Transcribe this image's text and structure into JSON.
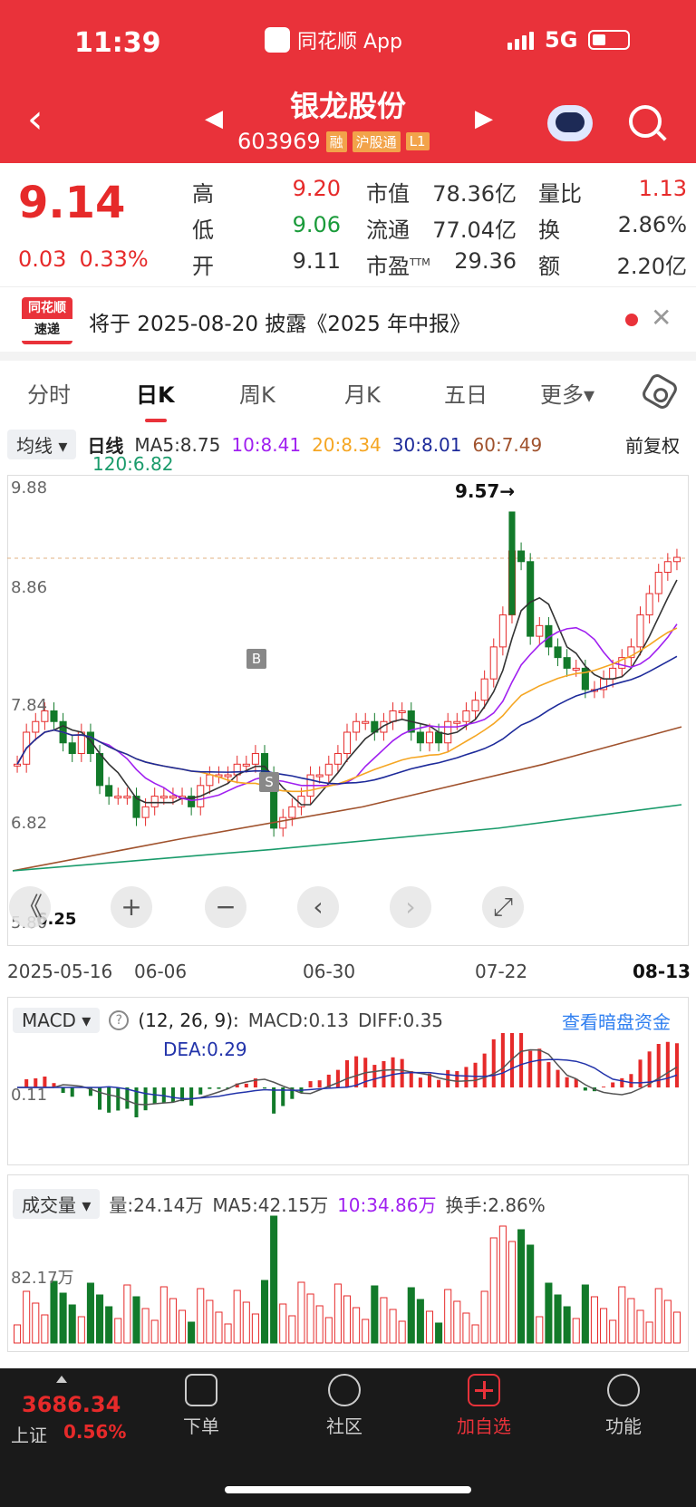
{
  "status": {
    "time": "11:39",
    "app": "同花顺 App",
    "network": "5G"
  },
  "header": {
    "name": "银龙股份",
    "code": "603969",
    "tags": [
      "融",
      "沪股通",
      "L1"
    ]
  },
  "quote": {
    "price": "9.14",
    "change": "0.03",
    "change_pct": "0.33%",
    "high_label": "高",
    "high": "9.20",
    "low_label": "低",
    "low": "9.06",
    "open_label": "开",
    "open": "9.11",
    "mktcap_label": "市值",
    "mktcap": "78.36亿",
    "float_label": "流通",
    "float": "77.04亿",
    "pe_label": "市盈",
    "pe_sup": "TTM",
    "pe": "29.36",
    "volratio_label": "量比",
    "volratio": "1.13",
    "turnover_label": "换",
    "turnover": "2.86%",
    "amount_label": "额",
    "amount": "2.20亿"
  },
  "notice": {
    "logo_top": "同花顺",
    "logo_bottom": "速递",
    "text": "将于 2025-08-20 披露《2025 年中报》"
  },
  "tabs": [
    "分时",
    "日K",
    "周K",
    "月K",
    "五日",
    "更多▾"
  ],
  "ma": {
    "dropdown": "均线 ▾",
    "period": "日线",
    "ma5": "MA5:8.75",
    "ma10": "10:8.41",
    "ma20": "20:8.34",
    "ma30": "30:8.01",
    "ma60": "60:7.49",
    "ma120": "120:6.82",
    "fuquan": "前复权"
  },
  "colors": {
    "ma5": "#333333",
    "ma10": "#a020f0",
    "ma20": "#f5a623",
    "ma30": "#1d2a9a",
    "ma60": "#a0522d",
    "ma120": "#1a9b6b",
    "up": "#e62a2a",
    "down": "#127a2a"
  },
  "chart_data": {
    "type": "candlestick",
    "y_ticks": [
      "9.88",
      "8.86",
      "7.84",
      "6.82",
      "5.80"
    ],
    "peak_label": "9.57→",
    "low_label": "6.25",
    "marker_b": "B",
    "marker_s": "S",
    "x_labels": [
      "2025-05-16",
      "06-06",
      "06-30",
      "07-22",
      "08-13"
    ]
  },
  "controls": {
    "back": "《",
    "zoom_in": "+",
    "zoom_out": "−",
    "prev": "‹",
    "next": "›",
    "fullscreen": "⤢"
  },
  "macd": {
    "dropdown": "MACD ▾",
    "params": "(12, 26, 9):",
    "macd": "MACD:0.13",
    "diff": "DIFF:0.35",
    "dea": "DEA:0.29",
    "link": "查看暗盘资金",
    "axis": "0.11"
  },
  "volume": {
    "dropdown": "成交量 ▾",
    "vol": "量:24.14万",
    "ma5": "MA5:42.15万",
    "ma10": "10:34.86万",
    "turnover": "换手:2.86%",
    "axis": "82.17万"
  },
  "bottom": {
    "index_value": "3686.34",
    "index_name": "上证",
    "index_pct": "0.56%",
    "nav": [
      "下单",
      "社区",
      "加自选",
      "功能"
    ]
  }
}
